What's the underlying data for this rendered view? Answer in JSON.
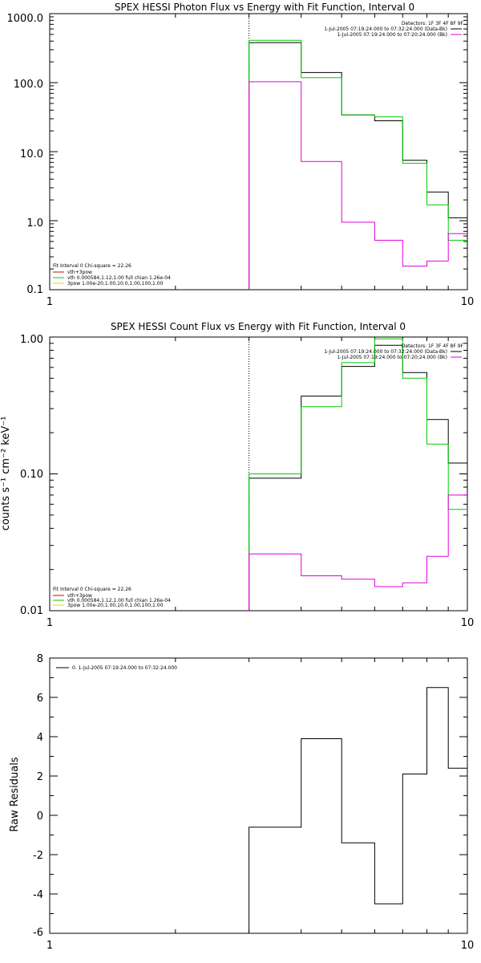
{
  "colors": {
    "black": "#000000",
    "green": "#00cc00",
    "magenta": "#e000e0",
    "background": "#ffffff"
  },
  "chart_data": [
    {
      "type": "line",
      "step": true,
      "title": "SPEX HESSI Photon Flux vs Energy with Fit Function, Interval 0",
      "xlabel": "",
      "ylabel": "",
      "xscale": "log",
      "yscale": "log",
      "xlim": [
        1,
        10
      ],
      "ylim": [
        0.1,
        1000
      ],
      "xticks": [
        "1",
        "10"
      ],
      "yticks": [
        "1000.0",
        "100.0",
        "10.0",
        "1.0",
        "0.1"
      ],
      "marker_x": 3,
      "x_edges": [
        3,
        4,
        5,
        6,
        7,
        8,
        9,
        10
      ],
      "detectors": "Detectors: 1F 3F 4F 8F 9F",
      "caption": [
        "1-Jul-2005 07:19:24.000 to 07:32:24.000 (Data-Bk)",
        "1-Jul-2005 07:19:24.000 to 07:20:24.000 (Bk)"
      ],
      "legend": [
        "Fit Interval 0   Chi-square = 22.26",
        "vth+3pow",
        "vth 0.000584,1.12,1.00  full chian 1.26e-04",
        "3pow 1.00e-20,1.00,10.0,1.00,100,1.00"
      ],
      "series": [
        {
          "name": "",
          "color": "#000000",
          "values": [
            380,
            140,
            34,
            28,
            7.5,
            2.6,
            1.1
          ]
        },
        {
          "name": "",
          "color": "#00cc00",
          "values": [
            410,
            118,
            34,
            32,
            6.8,
            1.7,
            0.52
          ]
        },
        {
          "name": "",
          "color": "#e000e0",
          "values": [
            103,
            7.2,
            0.95,
            0.52,
            0.22,
            0.26,
            0.65
          ]
        }
      ]
    },
    {
      "type": "line",
      "step": true,
      "title": "SPEX HESSI Count Flux vs Energy with Fit Function, Interval 0",
      "xlabel": "",
      "ylabel": "counts s⁻¹ cm⁻² keV⁻¹",
      "xscale": "log",
      "yscale": "log",
      "xlim": [
        1,
        10
      ],
      "ylim": [
        0.01,
        1.0
      ],
      "xticks": [
        "1",
        "10"
      ],
      "yticks": [
        "1.00",
        "0.10",
        "0.01"
      ],
      "marker_x": 3,
      "x_edges": [
        3,
        4,
        5,
        6,
        7,
        8,
        9,
        10
      ],
      "detectors": "Detectors: 1F 3F 4F 8F 9F",
      "caption": [
        "1-Jul-2005 07:19:24.000 to 07:32:24.000 (Data-Bk)",
        "1-Jul-2005 07:19:24.000 to 07:20:24.000 (Bk)"
      ],
      "legend": [
        "Fit Interval 0   Chi-square = 22.26",
        "vth+3pow",
        "vth 0.000584,1.12,1.00  full chian 1.26e-04",
        "3pow 1.00e-20,1.00,10.0,1.00,100,1.00"
      ],
      "series": [
        {
          "name": "",
          "color": "#000000",
          "values": [
            0.093,
            0.37,
            0.61,
            0.87,
            0.55,
            0.25,
            0.12
          ]
        },
        {
          "name": "",
          "color": "#00cc00",
          "values": [
            0.1,
            0.31,
            0.65,
            0.97,
            0.5,
            0.165,
            0.055
          ]
        },
        {
          "name": "",
          "color": "#e000e0",
          "values": [
            0.026,
            0.018,
            0.017,
            0.015,
            0.016,
            0.025,
            0.07
          ]
        }
      ]
    },
    {
      "type": "line",
      "step": true,
      "title": "",
      "xlabel": "",
      "ylabel": "Raw Residuals",
      "xscale": "log",
      "yscale": "linear",
      "xlim": [
        1,
        10
      ],
      "ylim": [
        -6,
        8
      ],
      "xticks": [
        "1",
        "10"
      ],
      "yticks": [
        "8",
        "6",
        "4",
        "2",
        "0",
        "-2",
        "-4",
        "-6"
      ],
      "x_edges": [
        3,
        4,
        5,
        6,
        7,
        8,
        9,
        10
      ],
      "legend": [
        "0.  1-Jul-2005 07:19:24.000 to 07:32:24.000"
      ],
      "series": [
        {
          "name": "0.  1-Jul-2005 07:19:24.000 to 07:32:24.000",
          "color": "#000000",
          "values": [
            -0.6,
            3.9,
            -1.4,
            -4.5,
            2.1,
            6.5,
            2.4
          ]
        }
      ]
    }
  ]
}
